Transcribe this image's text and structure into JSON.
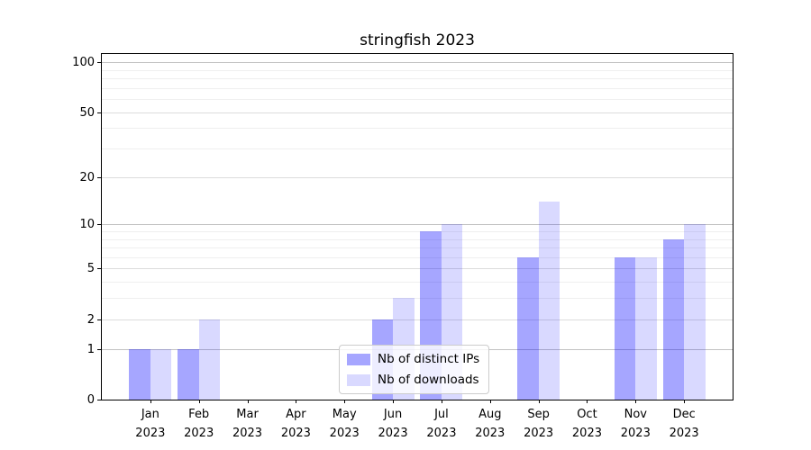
{
  "chart_data": {
    "type": "bar",
    "title": "stringfish 2023",
    "xlabel": "",
    "ylabel": "",
    "year": "2023",
    "categories": [
      "Jan",
      "Feb",
      "Mar",
      "Apr",
      "May",
      "Jun",
      "Jul",
      "Aug",
      "Sep",
      "Oct",
      "Nov",
      "Dec"
    ],
    "series": [
      {
        "name": "Nb of distinct IPs",
        "color": "#0000ff59",
        "values": [
          1,
          1,
          0,
          0,
          0,
          2,
          9,
          0,
          6,
          0,
          6,
          8
        ]
      },
      {
        "name": "Nb of downloads",
        "color": "#0000ff26",
        "values": [
          1,
          2,
          0,
          0,
          0,
          3,
          10,
          0,
          14,
          0,
          6,
          10
        ]
      }
    ],
    "yscale": "log1p",
    "ylim": [
      0,
      112
    ],
    "yticks": [
      0,
      1,
      2,
      5,
      10,
      20,
      50,
      100
    ],
    "major_gridlines": [
      1,
      10,
      100
    ],
    "mid_gridlines": [
      2,
      5,
      20,
      50
    ],
    "minor_gridlines": [
      3,
      4,
      6,
      7,
      8,
      9,
      30,
      40,
      60,
      70,
      80,
      90
    ],
    "grid": "horizontal",
    "legend_position": "inside-bottom-center",
    "colors": {
      "frame": "#000000",
      "grid_major": "#c2c2c2",
      "grid_minor": "#efefef",
      "background": "#ffffff"
    }
  }
}
